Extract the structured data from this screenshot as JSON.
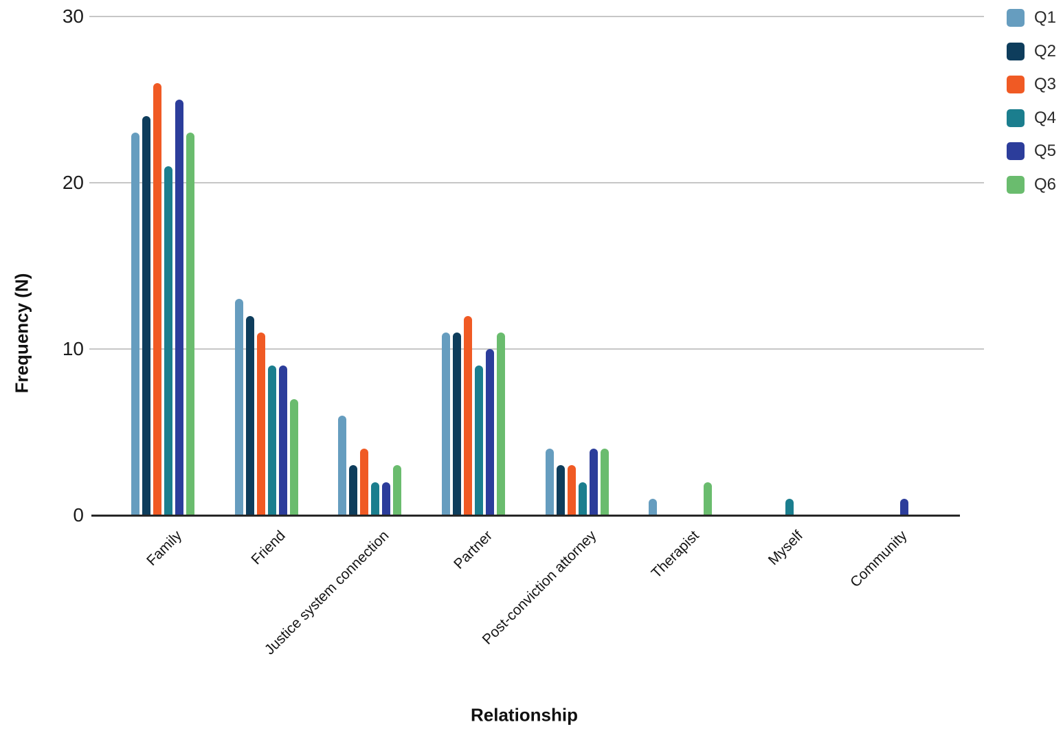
{
  "chart_data": {
    "type": "bar",
    "title": "",
    "xlabel": "Relationship",
    "ylabel": "Frequency (N)",
    "categories": [
      "Family",
      "Friend",
      "Justice system connection",
      "Partner",
      "Post-conviction attorney",
      "Therapist",
      "Myself",
      "Community"
    ],
    "series": [
      {
        "name": "Q1",
        "color": "#669DBF",
        "values": [
          23,
          13,
          6,
          11,
          4,
          1,
          0,
          0
        ]
      },
      {
        "name": "Q2",
        "color": "#0E3D5C",
        "values": [
          24,
          12,
          3,
          11,
          3,
          0,
          0,
          0
        ]
      },
      {
        "name": "Q3",
        "color": "#F05A24",
        "values": [
          26,
          11,
          4,
          12,
          3,
          0,
          0,
          0
        ]
      },
      {
        "name": "Q4",
        "color": "#1B7E8E",
        "values": [
          21,
          9,
          2,
          9,
          2,
          0,
          1,
          0
        ]
      },
      {
        "name": "Q5",
        "color": "#2C3D9B",
        "values": [
          25,
          9,
          2,
          10,
          4,
          0,
          0,
          1
        ]
      },
      {
        "name": "Q6",
        "color": "#6ABC6E",
        "values": [
          23,
          7,
          3,
          11,
          4,
          2,
          0,
          0
        ]
      }
    ],
    "ylim": [
      0,
      30
    ],
    "yticks": [
      0,
      10,
      20,
      30
    ],
    "grid": "horizontal",
    "legend_position": "top-right",
    "background": "#ffffff",
    "gridline_color": "#c6c6c6",
    "axis_color": "#262626"
  }
}
